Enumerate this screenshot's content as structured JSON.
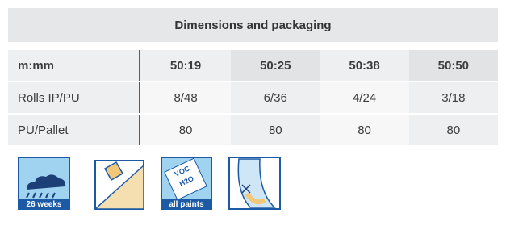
{
  "header": {
    "title": "Dimensions and packaging"
  },
  "table": {
    "columns": [
      "m:mm",
      "50:19",
      "50:25",
      "50:38",
      "50:50"
    ],
    "rows": [
      [
        "Rolls IP/PU",
        "8/48",
        "6/36",
        "4/24",
        "3/18"
      ],
      [
        "PU/Pallet",
        "80",
        "80",
        "80",
        "80"
      ]
    ]
  },
  "icons": {
    "weather": "26 weeks",
    "voc": "VOC",
    "water": "H2O",
    "paints": "all paints"
  }
}
